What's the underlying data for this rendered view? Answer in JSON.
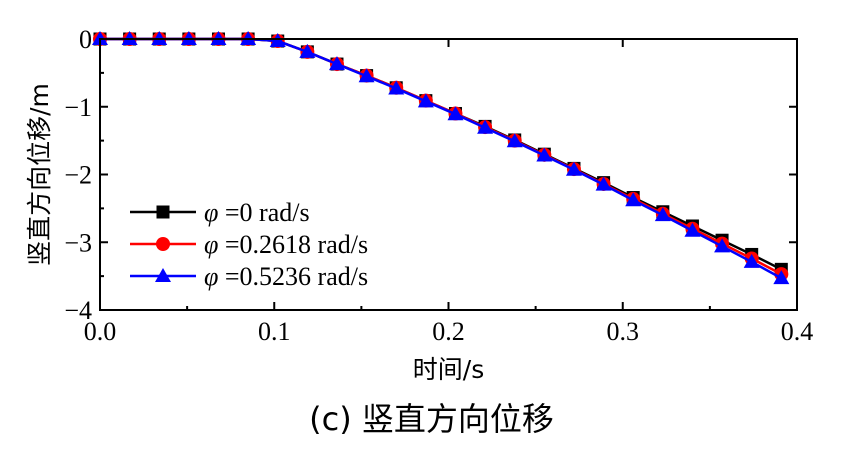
{
  "chart_data": {
    "type": "line",
    "caption": "(c) 竖直方向位移",
    "xlabel": "时间/s",
    "ylabel": "竖直方向位移/m",
    "xlim": [
      0.0,
      0.4
    ],
    "ylim": [
      -4,
      0
    ],
    "xticks": [
      "0.0",
      "0.1",
      "0.2",
      "0.3",
      "0.4"
    ],
    "yticks": [
      "0",
      "−1",
      "−2",
      "−3",
      "−4"
    ],
    "legend_position": "lower-left",
    "x": [
      0.0,
      0.017,
      0.034,
      0.051,
      0.068,
      0.085,
      0.102,
      0.119,
      0.136,
      0.153,
      0.17,
      0.187,
      0.204,
      0.221,
      0.238,
      0.255,
      0.272,
      0.289,
      0.306,
      0.323,
      0.34,
      0.357,
      0.374,
      0.391
    ],
    "series": [
      {
        "name_prefix": "φ",
        "name_value": "=0 rad/s",
        "color": "#000000",
        "marker": "square",
        "values": [
          0,
          0,
          0,
          0,
          0,
          0,
          -0.03,
          -0.19,
          -0.37,
          -0.54,
          -0.72,
          -0.91,
          -1.1,
          -1.29,
          -1.49,
          -1.7,
          -1.91,
          -2.12,
          -2.34,
          -2.55,
          -2.76,
          -2.97,
          -3.18,
          -3.4
        ]
      },
      {
        "name_prefix": "φ",
        "name_value": "=0.2618 rad/s",
        "color": "#ff0000",
        "marker": "circle",
        "values": [
          0,
          0,
          0,
          0,
          0,
          0,
          -0.03,
          -0.19,
          -0.37,
          -0.54,
          -0.72,
          -0.91,
          -1.1,
          -1.3,
          -1.5,
          -1.71,
          -1.92,
          -2.14,
          -2.36,
          -2.58,
          -2.8,
          -3.02,
          -3.24,
          -3.47
        ]
      },
      {
        "name_prefix": "φ",
        "name_value": "=0.5236 rad/s",
        "color": "#0000ff",
        "marker": "triangle",
        "values": [
          0,
          0,
          0,
          0,
          0,
          0,
          -0.03,
          -0.19,
          -0.37,
          -0.55,
          -0.73,
          -0.92,
          -1.11,
          -1.31,
          -1.51,
          -1.72,
          -1.93,
          -2.15,
          -2.38,
          -2.6,
          -2.83,
          -3.06,
          -3.29,
          -3.53
        ]
      }
    ]
  }
}
